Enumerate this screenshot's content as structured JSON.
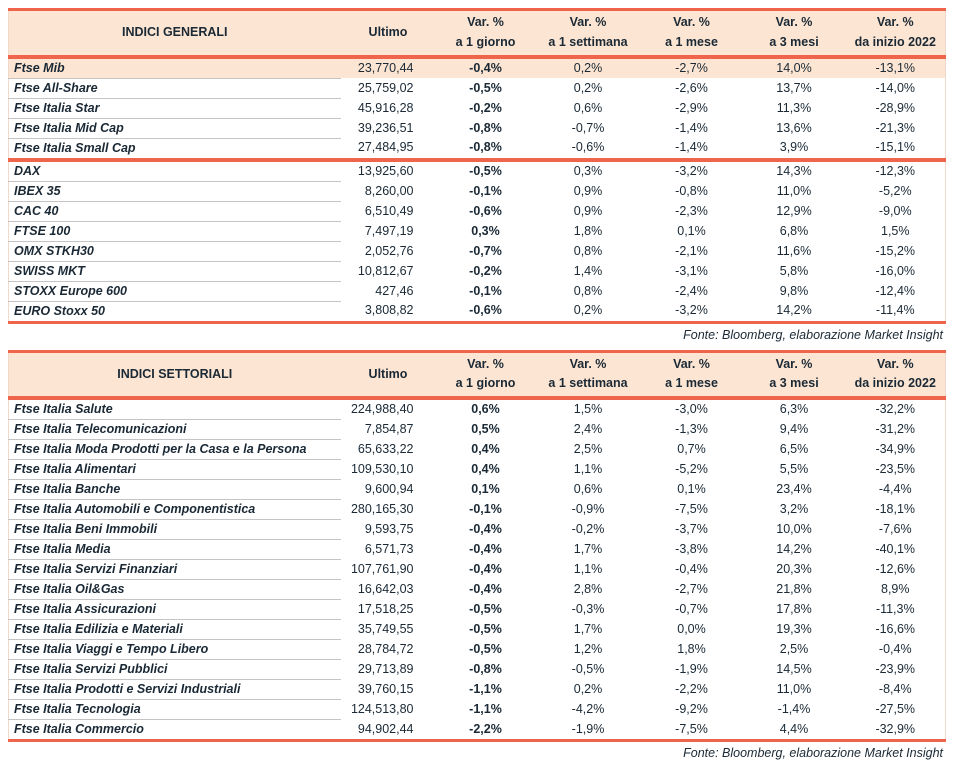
{
  "colors": {
    "rule_red": "#ef654c",
    "header_bg": "#fce5d2",
    "highlight_bg": "#fce5d2",
    "text": "#1a2935"
  },
  "tables": [
    {
      "title": "INDICI GENERALI",
      "ultimo_label": "Ultimo",
      "var_headers": [
        [
          "Var. %",
          "a 1 giorno"
        ],
        [
          "Var. %",
          "a 1 settimana"
        ],
        [
          "Var. %",
          "a 1 mese"
        ],
        [
          "Var. %",
          "a 3 mesi"
        ],
        [
          "Var. %",
          "da inizio 2022"
        ]
      ],
      "groups": [
        [
          {
            "name": "Ftse Mib",
            "ultimo": "23,770,44",
            "d1": "-0,4%",
            "w1": "0,2%",
            "m1": "-2,7%",
            "m3": "14,0%",
            "ytd": "-13,1%",
            "highlight": true
          },
          {
            "name": "Ftse All-Share",
            "ultimo": "25,759,02",
            "d1": "-0,5%",
            "w1": "0,2%",
            "m1": "-2,6%",
            "m3": "13,7%",
            "ytd": "-14,0%"
          },
          {
            "name": "Ftse Italia Star",
            "ultimo": "45,916,28",
            "d1": "-0,2%",
            "w1": "0,6%",
            "m1": "-2,9%",
            "m3": "11,3%",
            "ytd": "-28,9%"
          },
          {
            "name": "Ftse Italia Mid Cap",
            "ultimo": "39,236,51",
            "d1": "-0,8%",
            "w1": "-0,7%",
            "m1": "-1,4%",
            "m3": "13,6%",
            "ytd": "-21,3%"
          },
          {
            "name": "Ftse Italia Small Cap",
            "ultimo": "27,484,95",
            "d1": "-0,8%",
            "w1": "-0,6%",
            "m1": "-1,4%",
            "m3": "3,9%",
            "ytd": "-15,1%"
          }
        ],
        [
          {
            "name": "DAX",
            "ultimo": "13,925,60",
            "d1": "-0,5%",
            "w1": "0,3%",
            "m1": "-3,2%",
            "m3": "14,3%",
            "ytd": "-12,3%"
          },
          {
            "name": "IBEX 35",
            "ultimo": "8,260,00",
            "d1": "-0,1%",
            "w1": "0,9%",
            "m1": "-0,8%",
            "m3": "11,0%",
            "ytd": "-5,2%"
          },
          {
            "name": "CAC 40",
            "ultimo": "6,510,49",
            "d1": "-0,6%",
            "w1": "0,9%",
            "m1": "-2,3%",
            "m3": "12,9%",
            "ytd": "-9,0%"
          },
          {
            "name": "FTSE 100",
            "ultimo": "7,497,19",
            "d1": "0,3%",
            "w1": "1,8%",
            "m1": "0,1%",
            "m3": "6,8%",
            "ytd": "1,5%"
          },
          {
            "name": "OMX STKH30",
            "ultimo": "2,052,76",
            "d1": "-0,7%",
            "w1": "0,8%",
            "m1": "-2,1%",
            "m3": "11,6%",
            "ytd": "-15,2%"
          },
          {
            "name": "SWISS MKT",
            "ultimo": "10,812,67",
            "d1": "-0,2%",
            "w1": "1,4%",
            "m1": "-3,1%",
            "m3": "5,8%",
            "ytd": "-16,0%"
          },
          {
            "name": "STOXX Europe 600",
            "ultimo": "427,46",
            "d1": "-0,1%",
            "w1": "0,8%",
            "m1": "-2,4%",
            "m3": "9,8%",
            "ytd": "-12,4%"
          },
          {
            "name": "EURO Stoxx 50",
            "ultimo": "3,808,82",
            "d1": "-0,6%",
            "w1": "0,2%",
            "m1": "-3,2%",
            "m3": "14,2%",
            "ytd": "-11,4%"
          }
        ]
      ],
      "source": "Fonte: Bloomberg, elaborazione Market Insight"
    },
    {
      "title": "INDICI SETTORIALI",
      "ultimo_label": "Ultimo",
      "var_headers": [
        [
          "Var. %",
          "a 1 giorno"
        ],
        [
          "Var. %",
          "a 1 settimana"
        ],
        [
          "Var. %",
          "a 1 mese"
        ],
        [
          "Var. %",
          "a 3 mesi"
        ],
        [
          "Var. %",
          "da inizio 2022"
        ]
      ],
      "groups": [
        [
          {
            "name": "Ftse Italia Salute",
            "ultimo": "224,988,40",
            "d1": "0,6%",
            "w1": "1,5%",
            "m1": "-3,0%",
            "m3": "6,3%",
            "ytd": "-32,2%"
          },
          {
            "name": "Ftse Italia Telecomunicazioni",
            "ultimo": "7,854,87",
            "d1": "0,5%",
            "w1": "2,4%",
            "m1": "-1,3%",
            "m3": "9,4%",
            "ytd": "-31,2%"
          },
          {
            "name": "Ftse Italia Moda Prodotti per la Casa e la Persona",
            "ultimo": "65,633,22",
            "d1": "0,4%",
            "w1": "2,5%",
            "m1": "0,7%",
            "m3": "6,5%",
            "ytd": "-34,9%"
          },
          {
            "name": "Ftse Italia Alimentari",
            "ultimo": "109,530,10",
            "d1": "0,4%",
            "w1": "1,1%",
            "m1": "-5,2%",
            "m3": "5,5%",
            "ytd": "-23,5%"
          },
          {
            "name": "Ftse Italia Banche",
            "ultimo": "9,600,94",
            "d1": "0,1%",
            "w1": "0,6%",
            "m1": "0,1%",
            "m3": "23,4%",
            "ytd": "-4,4%"
          },
          {
            "name": "Ftse Italia Automobili e Componentistica",
            "ultimo": "280,165,30",
            "d1": "-0,1%",
            "w1": "-0,9%",
            "m1": "-7,5%",
            "m3": "3,2%",
            "ytd": "-18,1%"
          },
          {
            "name": "Ftse Italia Beni Immobili",
            "ultimo": "9,593,75",
            "d1": "-0,4%",
            "w1": "-0,2%",
            "m1": "-3,7%",
            "m3": "10,0%",
            "ytd": "-7,6%"
          },
          {
            "name": "Ftse Italia Media",
            "ultimo": "6,571,73",
            "d1": "-0,4%",
            "w1": "1,7%",
            "m1": "-3,8%",
            "m3": "14,2%",
            "ytd": "-40,1%"
          },
          {
            "name": "Ftse Italia Servizi Finanziari",
            "ultimo": "107,761,90",
            "d1": "-0,4%",
            "w1": "1,1%",
            "m1": "-0,4%",
            "m3": "20,3%",
            "ytd": "-12,6%"
          },
          {
            "name": "Ftse Italia Oil&Gas",
            "ultimo": "16,642,03",
            "d1": "-0,4%",
            "w1": "2,8%",
            "m1": "-2,7%",
            "m3": "21,8%",
            "ytd": "8,9%"
          },
          {
            "name": "Ftse Italia Assicurazioni",
            "ultimo": "17,518,25",
            "d1": "-0,5%",
            "w1": "-0,3%",
            "m1": "-0,7%",
            "m3": "17,8%",
            "ytd": "-11,3%"
          },
          {
            "name": "Ftse Italia Edilizia e Materiali",
            "ultimo": "35,749,55",
            "d1": "-0,5%",
            "w1": "1,7%",
            "m1": "0,0%",
            "m3": "19,3%",
            "ytd": "-16,6%"
          },
          {
            "name": "Ftse Italia Viaggi e Tempo Libero",
            "ultimo": "28,784,72",
            "d1": "-0,5%",
            "w1": "1,2%",
            "m1": "1,8%",
            "m3": "2,5%",
            "ytd": "-0,4%"
          },
          {
            "name": "Ftse Italia Servizi Pubblici",
            "ultimo": "29,713,89",
            "d1": "-0,8%",
            "w1": "-0,5%",
            "m1": "-1,9%",
            "m3": "14,5%",
            "ytd": "-23,9%"
          },
          {
            "name": "Ftse Italia Prodotti e Servizi Industriali",
            "ultimo": "39,760,15",
            "d1": "-1,1%",
            "w1": "0,2%",
            "m1": "-2,2%",
            "m3": "11,0%",
            "ytd": "-8,4%"
          },
          {
            "name": "Ftse Italia Tecnologia",
            "ultimo": "124,513,80",
            "d1": "-1,1%",
            "w1": "-4,2%",
            "m1": "-9,2%",
            "m3": "-1,4%",
            "ytd": "-27,5%"
          },
          {
            "name": "Ftse Italia Commercio",
            "ultimo": "94,902,44",
            "d1": "-2,2%",
            "w1": "-1,9%",
            "m1": "-7,5%",
            "m3": "4,4%",
            "ytd": "-32,9%"
          }
        ]
      ],
      "source": "Fonte: Bloomberg, elaborazione Market Insight"
    }
  ]
}
